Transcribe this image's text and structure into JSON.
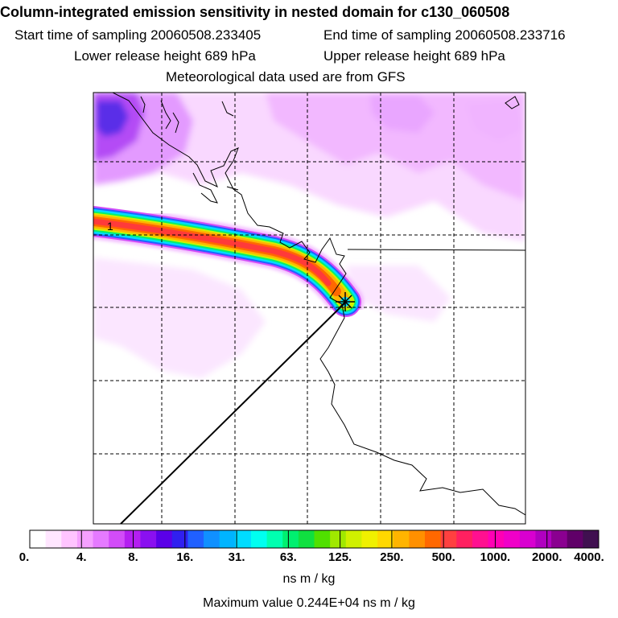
{
  "header": {
    "title": "Column-integrated emission sensitivity in nested domain for c130_060508",
    "start": "Start time of sampling 20060508.233405",
    "end": "End time of sampling 20060508.233716",
    "lower": "Lower release height  689 hPa",
    "upper": "Upper release height  689 hPa",
    "met": "Meteorological data used are from GFS"
  },
  "map": {
    "release_marker_label": "1"
  },
  "colorbar": {
    "labels": [
      "0.",
      "4.",
      "8.",
      "16.",
      "31.",
      "63.",
      "125.",
      "250.",
      "500.",
      "1000.",
      "2000.",
      "4000."
    ],
    "colors": [
      "#ffffff",
      "#ffe6ff",
      "#ffc4ff",
      "#f5a0ff",
      "#e57aff",
      "#d24cf8",
      "#b41ff0",
      "#8a10f0",
      "#5a00e8",
      "#3020f0",
      "#2060ff",
      "#1090ff",
      "#00b4ff",
      "#00dcff",
      "#00fff0",
      "#00ffb0",
      "#00f070",
      "#10e040",
      "#50e000",
      "#a0e800",
      "#d0f000",
      "#f0f000",
      "#ffd800",
      "#ffb400",
      "#ff9000",
      "#ff6800",
      "#ff4040",
      "#ff2060",
      "#ff1090",
      "#ff00b4",
      "#f000c8",
      "#d800d0",
      "#b000c0",
      "#8a0090",
      "#600068",
      "#401050"
    ],
    "units": "ns m / kg"
  },
  "footer": {
    "maximum": "Maximum value  0.244E+04 ns m / kg"
  }
}
